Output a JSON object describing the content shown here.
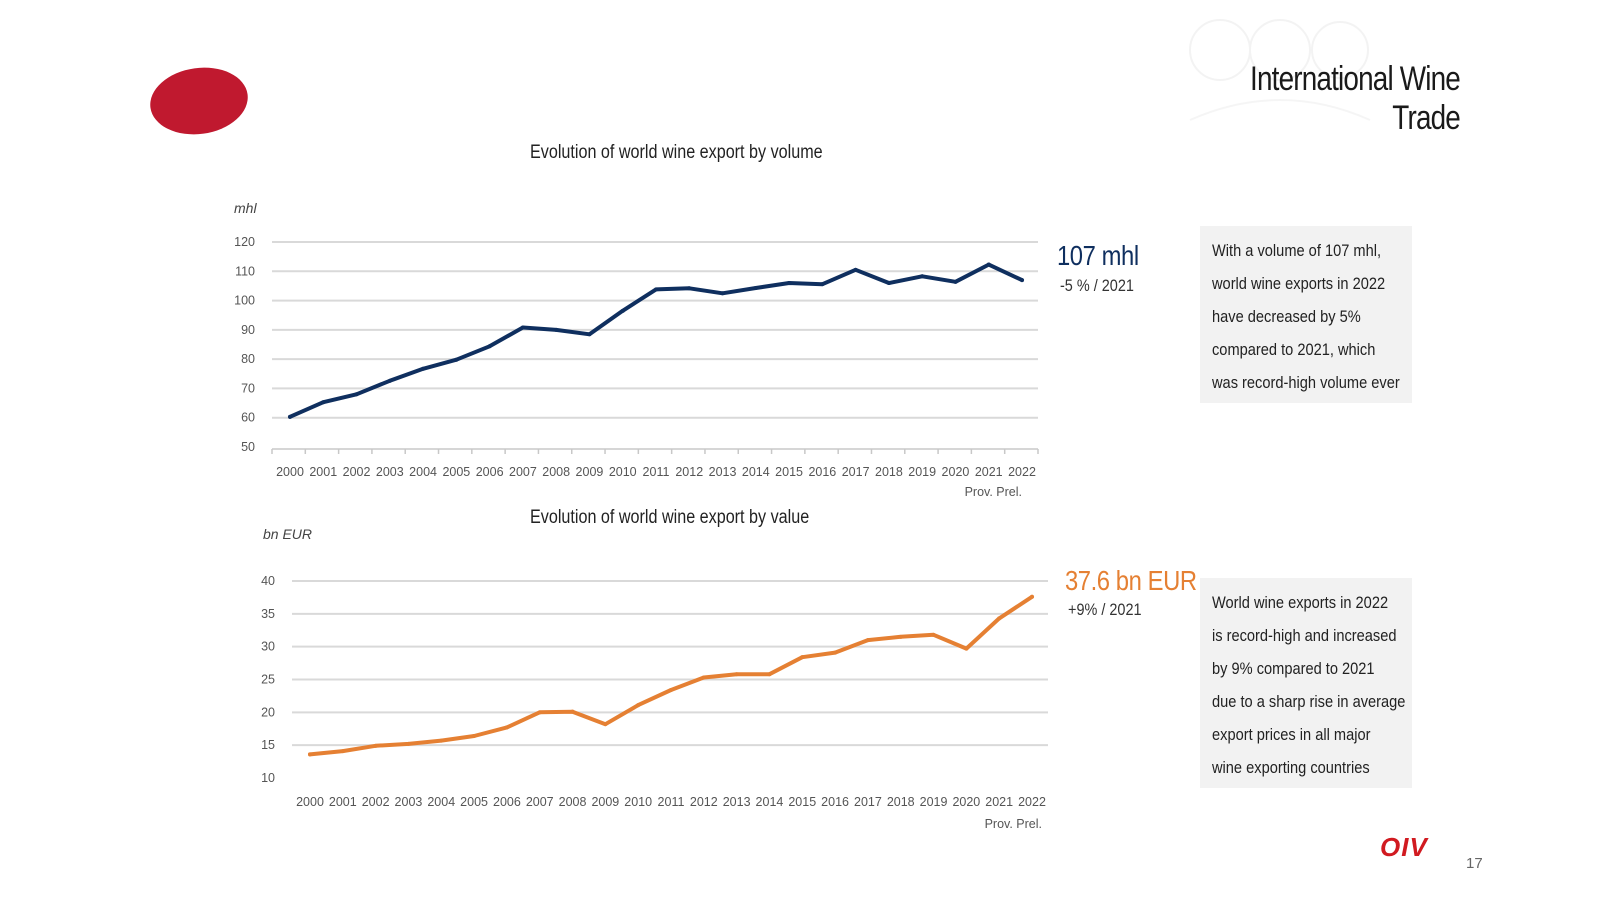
{
  "page": {
    "title": "International Wine Trade",
    "page_number": "17",
    "brand_text": "OIV",
    "colors": {
      "brand_red": "#c0192f",
      "volume_line": "#0f2f5f",
      "value_line": "#e58033",
      "grid": "#d9d9d9"
    }
  },
  "chart_data": [
    {
      "type": "line",
      "title": "Evolution of world wine export by volume",
      "ylabel": "mhl",
      "xlabel": "",
      "categories": [
        "2000",
        "2001",
        "2002",
        "2003",
        "2004",
        "2005",
        "2006",
        "2007",
        "2008",
        "2009",
        "2010",
        "2011",
        "2012",
        "2013",
        "2014",
        "2015",
        "2016",
        "2017",
        "2018",
        "2019",
        "2020",
        "2021",
        "2022"
      ],
      "category_note": "Prov.  Prel.",
      "yticks": [
        120,
        110,
        100,
        90,
        80,
        70,
        60,
        50
      ],
      "ylim": [
        50,
        120
      ],
      "series": [
        {
          "name": "Export volume",
          "color": "#0f2f5f",
          "values": [
            60.3,
            65.3,
            68.0,
            72.6,
            76.7,
            79.8,
            84.4,
            90.8,
            90.0,
            88.5,
            96.5,
            103.8,
            104.2,
            102.5,
            104.3,
            106.0,
            105.6,
            110.5,
            106.0,
            108.3,
            106.4,
            112.3,
            107.0
          ]
        }
      ],
      "callout": {
        "value": "107 mhl",
        "change": "-5 % / 2021"
      },
      "note_lines": [
        "With a volume of 107 mhl,",
        "world wine exports in 2022",
        "have decreased by 5%",
        "compared to 2021, which",
        "was record-high volume ever"
      ]
    },
    {
      "type": "line",
      "title": "Evolution of world wine export by value",
      "ylabel": "bn EUR",
      "xlabel": "",
      "categories": [
        "2000",
        "2001",
        "2002",
        "2003",
        "2004",
        "2005",
        "2006",
        "2007",
        "2008",
        "2009",
        "2010",
        "2011",
        "2012",
        "2013",
        "2014",
        "2015",
        "2016",
        "2017",
        "2018",
        "2019",
        "2020",
        "2021",
        "2022"
      ],
      "category_note": "Prov.  Prel.",
      "yticks": [
        40,
        35,
        30,
        25,
        20,
        15,
        10
      ],
      "ylim": [
        10,
        40
      ],
      "series": [
        {
          "name": "Export value",
          "color": "#e58033",
          "values": [
            13.6,
            14.1,
            14.9,
            15.2,
            15.7,
            16.4,
            17.7,
            20.0,
            20.1,
            18.2,
            21.1,
            23.4,
            25.3,
            25.8,
            25.8,
            28.4,
            29.1,
            31.0,
            31.5,
            31.8,
            29.7,
            34.3,
            37.6
          ]
        }
      ],
      "callout": {
        "value": "37.6 bn EUR",
        "change": "+9% / 2021"
      },
      "note_lines": [
        "World wine exports in 2022",
        "is record-high and increased",
        "by 9% compared to 2021",
        "due to a sharp rise in average",
        "export prices in all major",
        "wine exporting countries"
      ]
    }
  ]
}
